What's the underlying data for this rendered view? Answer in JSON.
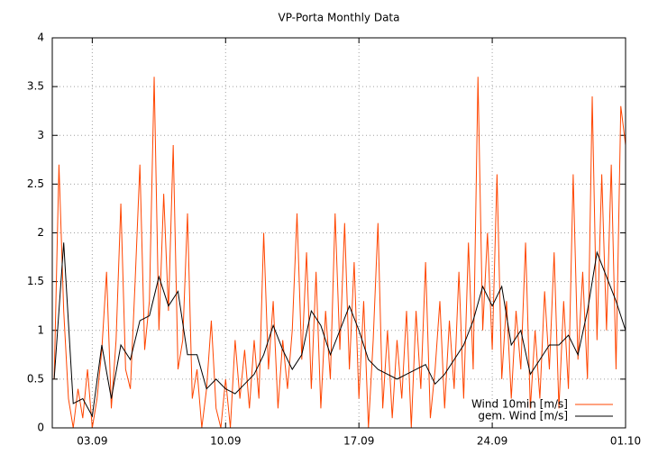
{
  "chart_data": {
    "type": "line",
    "title": "VP-Porta Monthly Data",
    "xlim": [
      -0.1,
      30
    ],
    "ylim": [
      0,
      4
    ],
    "xticks": [
      {
        "value": 2,
        "label": "03.09"
      },
      {
        "value": 9,
        "label": "10.09"
      },
      {
        "value": 16,
        "label": "17.09"
      },
      {
        "value": 23,
        "label": "24.09"
      },
      {
        "value": 30,
        "label": "01.10"
      }
    ],
    "yticks": [
      0,
      0.5,
      1,
      1.5,
      2,
      2.5,
      3,
      3.5,
      4
    ],
    "grid": true,
    "legend": "bottom right",
    "series": [
      {
        "name": "Wind 10min [m/s]",
        "color": "#ff4500",
        "x": [
          0,
          0.25,
          0.5,
          0.75,
          1,
          1.25,
          1.5,
          1.75,
          2,
          2.25,
          2.5,
          2.75,
          3,
          3.25,
          3.5,
          3.75,
          4,
          4.25,
          4.5,
          4.75,
          5,
          5.25,
          5.5,
          5.75,
          6,
          6.25,
          6.5,
          6.75,
          7,
          7.25,
          7.5,
          7.75,
          8,
          8.25,
          8.5,
          8.75,
          9,
          9.25,
          9.5,
          9.75,
          10,
          10.25,
          10.5,
          10.75,
          11,
          11.25,
          11.5,
          11.75,
          12,
          12.25,
          12.5,
          12.75,
          13,
          13.25,
          13.5,
          13.75,
          14,
          14.25,
          14.5,
          14.75,
          15,
          15.25,
          15.5,
          15.75,
          16,
          16.25,
          16.5,
          16.75,
          17,
          17.25,
          17.5,
          17.75,
          18,
          18.25,
          18.5,
          18.75,
          19,
          19.25,
          19.5,
          19.75,
          20,
          20.25,
          20.5,
          20.75,
          21,
          21.25,
          21.5,
          21.75,
          22,
          22.25,
          22.5,
          22.75,
          23,
          23.25,
          23.5,
          23.75,
          24,
          24.25,
          24.5,
          24.75,
          25,
          25.25,
          25.5,
          25.75,
          26,
          26.25,
          26.5,
          26.75,
          27,
          27.25,
          27.5,
          27.75,
          28,
          28.25,
          28.5,
          28.75,
          29,
          29.25,
          29.5,
          29.75,
          30
        ],
        "values": [
          0.5,
          2.7,
          1.2,
          0.3,
          0.0,
          0.4,
          0.1,
          0.6,
          0.0,
          0.3,
          0.8,
          1.6,
          0.2,
          0.9,
          2.3,
          0.6,
          0.4,
          1.5,
          2.7,
          0.8,
          1.3,
          3.6,
          1.0,
          2.4,
          1.2,
          2.9,
          0.6,
          0.9,
          2.2,
          0.3,
          0.6,
          0.0,
          0.4,
          1.1,
          0.2,
          0.0,
          0.5,
          0.0,
          0.9,
          0.3,
          0.8,
          0.2,
          0.9,
          0.3,
          2.0,
          0.6,
          1.3,
          0.2,
          0.9,
          0.4,
          1.0,
          2.2,
          0.7,
          1.8,
          0.4,
          1.6,
          0.2,
          1.2,
          0.5,
          2.2,
          0.8,
          2.1,
          0.6,
          1.7,
          0.3,
          1.3,
          0.0,
          0.9,
          2.1,
          0.2,
          1.0,
          0.1,
          0.9,
          0.3,
          1.2,
          0.0,
          1.2,
          0.4,
          1.7,
          0.1,
          0.6,
          1.3,
          0.2,
          1.1,
          0.4,
          1.6,
          0.3,
          1.9,
          0.6,
          3.6,
          1.0,
          2.0,
          0.8,
          2.6,
          0.5,
          1.3,
          0.3,
          1.2,
          0.6,
          1.9,
          0.2,
          1.0,
          0.3,
          1.4,
          0.6,
          1.8,
          0.2,
          1.3,
          0.4,
          2.6,
          0.7,
          1.6,
          0.5,
          3.4,
          0.9,
          2.6,
          1.0,
          2.7,
          0.6,
          3.3,
          2.9
        ]
      },
      {
        "name": "gem. Wind [m/s]",
        "color": "#000000",
        "x": [
          0,
          0.5,
          1,
          1.5,
          2,
          2.5,
          3,
          3.5,
          4,
          4.5,
          5,
          5.5,
          6,
          6.5,
          7,
          7.5,
          8,
          8.5,
          9,
          9.5,
          10,
          10.5,
          11,
          11.5,
          12,
          12.5,
          13,
          13.5,
          14,
          14.5,
          15,
          15.5,
          16,
          16.5,
          17,
          17.5,
          18,
          18.5,
          19,
          19.5,
          20,
          20.5,
          21,
          21.5,
          22,
          22.5,
          23,
          23.5,
          24,
          24.5,
          25,
          25.5,
          26,
          26.5,
          27,
          27.5,
          28,
          28.5,
          29,
          29.5,
          30
        ],
        "values": [
          0.5,
          1.9,
          0.25,
          0.3,
          0.12,
          0.85,
          0.3,
          0.85,
          0.7,
          1.1,
          1.15,
          1.55,
          1.25,
          1.4,
          0.75,
          0.75,
          0.4,
          0.5,
          0.4,
          0.35,
          0.45,
          0.55,
          0.75,
          1.05,
          0.8,
          0.6,
          0.75,
          1.2,
          1.05,
          0.75,
          1.0,
          1.25,
          1.0,
          0.7,
          0.6,
          0.55,
          0.5,
          0.55,
          0.6,
          0.65,
          0.45,
          0.55,
          0.7,
          0.85,
          1.1,
          1.45,
          1.25,
          1.45,
          0.85,
          1.0,
          0.55,
          0.7,
          0.85,
          0.85,
          0.95,
          0.75,
          1.2,
          1.8,
          1.55,
          1.3,
          1.0
        ]
      }
    ]
  }
}
